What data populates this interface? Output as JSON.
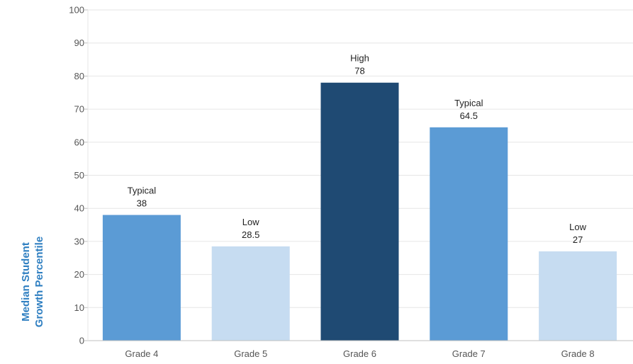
{
  "chart_data": {
    "type": "bar",
    "ylabel": [
      "Median Student",
      "Growth Percentile"
    ],
    "categories": [
      "Grade 4",
      "Grade 5",
      "Grade 6",
      "Grade 7",
      "Grade 8"
    ],
    "values": [
      38,
      28.5,
      78,
      64.5,
      27
    ],
    "value_labels": [
      "38",
      "28.5",
      "78",
      "64.5",
      "27"
    ],
    "levels": [
      "Typical",
      "Low",
      "High",
      "Typical",
      "Low"
    ],
    "ylim": [
      0,
      100
    ],
    "yticks": [
      "0",
      "10",
      "20",
      "30",
      "40",
      "50",
      "60",
      "70",
      "80",
      "90",
      "100"
    ],
    "grid": true,
    "level_colors": {
      "Low": "#c6dcf1",
      "Typical": "#5b9bd5",
      "High": "#1f4a73"
    },
    "title_color": "#2f7fc1"
  }
}
